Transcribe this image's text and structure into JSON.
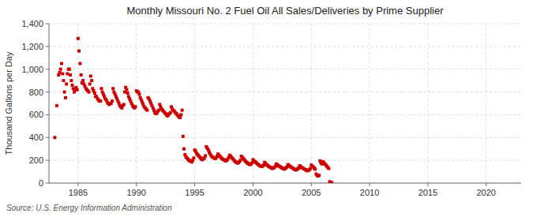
{
  "chart_data": {
    "type": "scatter",
    "title": "Monthly Missouri No. 2 Fuel Oil All Sales/Deliveries by Prime Supplier",
    "y_label": "Thousand Gallons per Day",
    "source": "Source: U.S. Energy Information Administration",
    "color": "#CC0000",
    "marker": "square",
    "grid": true,
    "xlim": [
      1982.5,
      2023
    ],
    "ylim": [
      0,
      1400
    ],
    "xticks": [
      1985,
      1990,
      1995,
      2000,
      2005,
      2010,
      2015,
      2020
    ],
    "yticks": [
      0,
      200,
      400,
      600,
      800,
      {
        "value": 1000,
        "label": "1,000"
      },
      {
        "value": 1200,
        "label": "1,200"
      },
      {
        "value": 1400,
        "label": "1,400"
      }
    ],
    "x": [
      1983.0,
      1983.17,
      1983.33,
      1983.42,
      1983.5,
      1983.58,
      1983.67,
      1983.75,
      1983.83,
      1983.92,
      1984.0,
      1984.08,
      1984.17,
      1984.25,
      1984.33,
      1984.42,
      1984.5,
      1984.58,
      1984.67,
      1984.75,
      1984.83,
      1984.92,
      1985.0,
      1985.08,
      1985.17,
      1985.25,
      1985.33,
      1985.42,
      1985.5,
      1985.58,
      1985.67,
      1985.75,
      1985.83,
      1985.92,
      1986.0,
      1986.08,
      1986.17,
      1986.25,
      1986.33,
      1986.42,
      1986.5,
      1986.58,
      1986.67,
      1986.75,
      1986.83,
      1986.92,
      1987.0,
      1987.08,
      1987.17,
      1987.25,
      1987.33,
      1987.42,
      1987.5,
      1987.58,
      1987.67,
      1987.75,
      1987.83,
      1987.92,
      1988.0,
      1988.08,
      1988.17,
      1988.25,
      1988.33,
      1988.42,
      1988.5,
      1988.58,
      1988.67,
      1988.75,
      1988.83,
      1988.92,
      1989.0,
      1989.08,
      1989.17,
      1989.25,
      1989.33,
      1989.42,
      1989.5,
      1989.58,
      1989.67,
      1989.75,
      1989.83,
      1989.92,
      1990.0,
      1990.08,
      1990.17,
      1990.25,
      1990.33,
      1990.42,
      1990.5,
      1990.58,
      1990.67,
      1990.75,
      1990.83,
      1990.92,
      1991.0,
      1991.08,
      1991.17,
      1991.25,
      1991.33,
      1991.42,
      1991.5,
      1991.58,
      1991.67,
      1991.75,
      1991.83,
      1991.92,
      1992.0,
      1992.08,
      1992.17,
      1992.25,
      1992.33,
      1992.42,
      1992.5,
      1992.58,
      1992.67,
      1992.75,
      1992.83,
      1992.92,
      1993.0,
      1993.08,
      1993.17,
      1993.25,
      1993.33,
      1993.42,
      1993.5,
      1993.58,
      1993.67,
      1993.75,
      1993.83,
      1993.92,
      1994.0,
      1994.08,
      1994.17,
      1994.25,
      1994.33,
      1994.42,
      1994.5,
      1994.58,
      1994.67,
      1994.75,
      1994.83,
      1994.92,
      1995.0,
      1995.08,
      1995.17,
      1995.25,
      1995.33,
      1995.42,
      1995.5,
      1995.58,
      1995.67,
      1995.75,
      1995.83,
      1995.92,
      1996.0,
      1996.08,
      1996.17,
      1996.25,
      1996.33,
      1996.42,
      1996.5,
      1996.58,
      1996.67,
      1996.75,
      1996.83,
      1996.92,
      1997.0,
      1997.08,
      1997.17,
      1997.25,
      1997.33,
      1997.42,
      1997.5,
      1997.58,
      1997.67,
      1997.75,
      1997.83,
      1997.92,
      1998.0,
      1998.08,
      1998.17,
      1998.25,
      1998.33,
      1998.42,
      1998.5,
      1998.58,
      1998.67,
      1998.75,
      1998.83,
      1998.92,
      1999.0,
      1999.08,
      1999.17,
      1999.25,
      1999.33,
      1999.42,
      1999.5,
      1999.58,
      1999.67,
      1999.75,
      1999.83,
      1999.92,
      2000.0,
      2000.08,
      2000.17,
      2000.25,
      2000.33,
      2000.42,
      2000.5,
      2000.58,
      2000.67,
      2000.75,
      2000.83,
      2000.92,
      2001.0,
      2001.08,
      2001.17,
      2001.25,
      2001.33,
      2001.42,
      2001.5,
      2001.58,
      2001.67,
      2001.75,
      2001.83,
      2001.92,
      2002.0,
      2002.08,
      2002.17,
      2002.25,
      2002.33,
      2002.42,
      2002.5,
      2002.58,
      2002.67,
      2002.75,
      2002.83,
      2002.92,
      2003.0,
      2003.08,
      2003.17,
      2003.25,
      2003.33,
      2003.42,
      2003.5,
      2003.58,
      2003.67,
      2003.75,
      2003.83,
      2003.92,
      2004.0,
      2004.08,
      2004.17,
      2004.25,
      2004.33,
      2004.42,
      2004.5,
      2004.58,
      2004.67,
      2004.75,
      2004.83,
      2004.92,
      2005.0,
      2005.08,
      2005.17,
      2005.25,
      2005.33,
      2005.42,
      2005.5,
      2005.58,
      2005.67,
      2005.75,
      2005.83,
      2005.92,
      2006.0,
      2006.08,
      2006.17,
      2006.25,
      2006.33,
      2006.42,
      2006.5,
      2006.58,
      2006.67,
      2006.75
    ],
    "values": [
      400,
      680,
      950,
      970,
      1000,
      1050,
      960,
      900,
      800,
      750,
      870,
      960,
      1000,
      1000,
      950,
      900,
      860,
      830,
      800,
      820,
      840,
      820,
      1270,
      1160,
      1050,
      950,
      880,
      900,
      870,
      850,
      830,
      820,
      810,
      800,
      870,
      940,
      900,
      830,
      810,
      790,
      760,
      760,
      740,
      730,
      720,
      720,
      830,
      800,
      780,
      760,
      740,
      730,
      710,
      700,
      690,
      700,
      700,
      720,
      830,
      800,
      780,
      760,
      740,
      720,
      700,
      680,
      670,
      660,
      680,
      690,
      800,
      840,
      820,
      790,
      760,
      740,
      720,
      700,
      680,
      670,
      660,
      670,
      810,
      800,
      800,
      780,
      750,
      730,
      710,
      690,
      670,
      660,
      650,
      640,
      750,
      740,
      720,
      700,
      680,
      660,
      640,
      620,
      610,
      615,
      630,
      640,
      690,
      670,
      650,
      640,
      630,
      620,
      610,
      600,
      590,
      600,
      610,
      620,
      670,
      650,
      640,
      630,
      620,
      610,
      600,
      590,
      580,
      575,
      600,
      640,
      410,
      300,
      250,
      230,
      220,
      210,
      200,
      195,
      190,
      185,
      200,
      220,
      290,
      280,
      260,
      250,
      240,
      230,
      220,
      210,
      205,
      215,
      220,
      240,
      320,
      305,
      290,
      270,
      255,
      240,
      230,
      225,
      220,
      215,
      220,
      235,
      255,
      245,
      235,
      225,
      215,
      210,
      205,
      200,
      195,
      200,
      210,
      225,
      245,
      235,
      225,
      215,
      205,
      195,
      188,
      182,
      175,
      180,
      188,
      200,
      235,
      225,
      215,
      205,
      195,
      185,
      178,
      172,
      165,
      162,
      168,
      178,
      205,
      195,
      188,
      182,
      173,
      165,
      158,
      152,
      148,
      145,
      150,
      158,
      182,
      172,
      162,
      155,
      148,
      142,
      138,
      133,
      128,
      132,
      138,
      148,
      168,
      160,
      152,
      148,
      143,
      137,
      132,
      128,
      122,
      128,
      133,
      142,
      162,
      155,
      148,
      142,
      136,
      130,
      125,
      120,
      115,
      118,
      125,
      132,
      152,
      145,
      138,
      132,
      128,
      122,
      118,
      112,
      108,
      112,
      118,
      128,
      158,
      148,
      142,
      132,
      122,
      80,
      65,
      62,
      68,
      195,
      178,
      168,
      188,
      178,
      168,
      158,
      148,
      138,
      128,
      12,
      6,
      3
    ]
  }
}
